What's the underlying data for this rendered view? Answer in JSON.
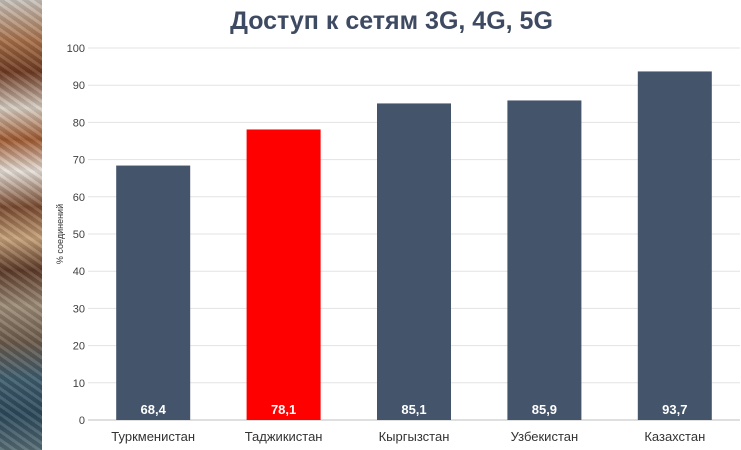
{
  "chart_data": {
    "type": "bar",
    "title": "Доступ к сетям 3G, 4G, 5G",
    "ylabel": "% соединений",
    "xlabel": "",
    "categories": [
      "Туркменистан",
      "Таджикистан",
      "Кыргызстан",
      "Узбекистан",
      "Казахстан"
    ],
    "values": [
      68.4,
      78.1,
      85.1,
      85.9,
      93.7
    ],
    "value_labels": [
      "68,4",
      "78,1",
      "85,1",
      "85,9",
      "93,7"
    ],
    "ylim": [
      0,
      100
    ],
    "yticks": [
      0,
      10,
      20,
      30,
      40,
      50,
      60,
      70,
      80,
      90,
      100
    ],
    "grid": true,
    "colors": {
      "default_bar": "#44546a",
      "highlight_bar": "#ff0000",
      "highlight_category": "Таджикистан"
    }
  }
}
